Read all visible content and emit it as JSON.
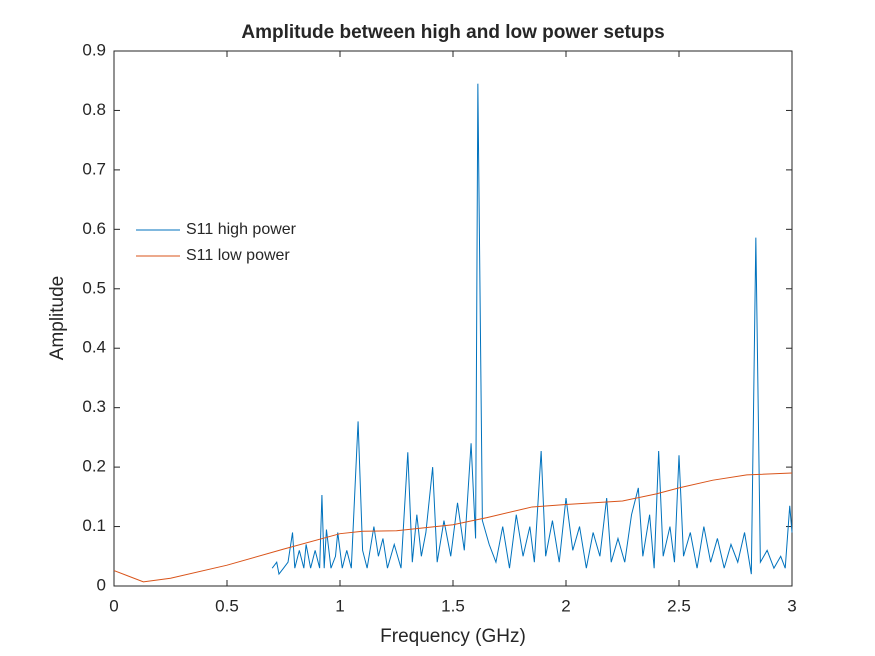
{
  "chart_data": {
    "type": "line",
    "title": "Amplitude between high and low power setups",
    "xlabel": "Frequency (GHz)",
    "ylabel": "Amplitude",
    "xlim": [
      0,
      3
    ],
    "xticks": [
      0,
      0.5,
      1,
      1.5,
      2,
      2.5,
      3
    ],
    "ylim": [
      0,
      0.9
    ],
    "yticks": [
      0,
      0.1,
      0.2,
      0.3,
      0.4,
      0.5,
      0.6,
      0.7,
      0.8,
      0.9
    ],
    "grid": false,
    "legend": "west",
    "series": [
      {
        "name": "S11 high power",
        "color": "#0072bd",
        "x": [
          0.7,
          0.72,
          0.73,
          0.75,
          0.77,
          0.79,
          0.8,
          0.82,
          0.84,
          0.85,
          0.87,
          0.89,
          0.91,
          0.92,
          0.93,
          0.94,
          0.96,
          0.98,
          0.99,
          1.01,
          1.03,
          1.05,
          1.08,
          1.1,
          1.12,
          1.15,
          1.17,
          1.19,
          1.21,
          1.24,
          1.27,
          1.3,
          1.32,
          1.34,
          1.36,
          1.38,
          1.41,
          1.43,
          1.46,
          1.49,
          1.52,
          1.55,
          1.58,
          1.6,
          1.61,
          1.63,
          1.66,
          1.69,
          1.72,
          1.75,
          1.78,
          1.81,
          1.84,
          1.86,
          1.89,
          1.91,
          1.94,
          1.97,
          2.0,
          2.03,
          2.06,
          2.09,
          2.12,
          2.15,
          2.18,
          2.2,
          2.23,
          2.26,
          2.29,
          2.32,
          2.34,
          2.37,
          2.39,
          2.41,
          2.43,
          2.46,
          2.48,
          2.5,
          2.52,
          2.55,
          2.58,
          2.61,
          2.64,
          2.67,
          2.7,
          2.73,
          2.76,
          2.79,
          2.82,
          2.84,
          2.86,
          2.89,
          2.92,
          2.95,
          2.97,
          2.99,
          3.0
        ],
        "values": [
          0.03,
          0.04,
          0.02,
          0.03,
          0.04,
          0.09,
          0.03,
          0.06,
          0.03,
          0.07,
          0.03,
          0.06,
          0.03,
          0.153,
          0.03,
          0.095,
          0.03,
          0.05,
          0.09,
          0.03,
          0.06,
          0.03,
          0.277,
          0.06,
          0.03,
          0.1,
          0.05,
          0.08,
          0.03,
          0.07,
          0.03,
          0.225,
          0.04,
          0.12,
          0.05,
          0.09,
          0.2,
          0.04,
          0.11,
          0.05,
          0.14,
          0.06,
          0.24,
          0.08,
          0.845,
          0.11,
          0.07,
          0.04,
          0.1,
          0.03,
          0.12,
          0.05,
          0.1,
          0.04,
          0.227,
          0.05,
          0.11,
          0.04,
          0.148,
          0.06,
          0.1,
          0.03,
          0.09,
          0.05,
          0.148,
          0.04,
          0.08,
          0.04,
          0.12,
          0.165,
          0.05,
          0.12,
          0.03,
          0.227,
          0.05,
          0.1,
          0.04,
          0.22,
          0.05,
          0.09,
          0.03,
          0.1,
          0.04,
          0.08,
          0.03,
          0.07,
          0.04,
          0.09,
          0.02,
          0.586,
          0.04,
          0.06,
          0.03,
          0.05,
          0.03,
          0.135,
          0.09
        ]
      },
      {
        "name": "S11 low power",
        "color": "#d95319",
        "x": [
          0,
          0.13,
          0.25,
          0.5,
          0.75,
          1.0,
          1.1,
          1.25,
          1.5,
          1.65,
          1.85,
          2.0,
          2.25,
          2.4,
          2.5,
          2.65,
          2.8,
          3.0
        ],
        "values": [
          0.026,
          0.007,
          0.013,
          0.035,
          0.062,
          0.088,
          0.092,
          0.093,
          0.103,
          0.115,
          0.133,
          0.137,
          0.143,
          0.155,
          0.165,
          0.178,
          0.187,
          0.19
        ]
      }
    ]
  }
}
